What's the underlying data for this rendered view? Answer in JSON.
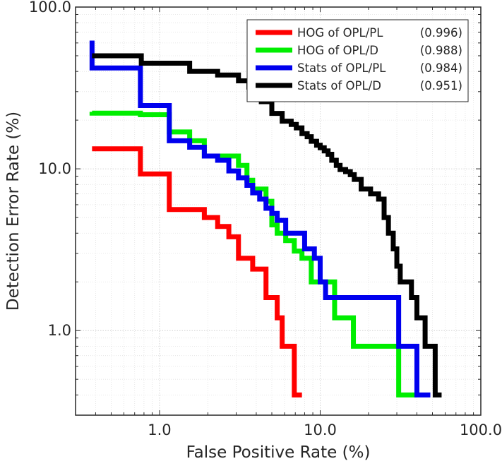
{
  "chart_data": {
    "type": "line",
    "title": "",
    "xlabel": "False Positive Rate (%)",
    "ylabel": "Detection Error Rate (%)",
    "xscale": "log",
    "yscale": "log",
    "xlim": [
      0.3,
      100
    ],
    "ylim": [
      0.3,
      100
    ],
    "xticks": [
      {
        "value": 1,
        "label": "1.0"
      },
      {
        "value": 10,
        "label": "10.0"
      },
      {
        "value": 100,
        "label": "100.0"
      }
    ],
    "yticks": [
      {
        "value": 1,
        "label": "1.0"
      },
      {
        "value": 10,
        "label": "10.0"
      },
      {
        "value": 100,
        "label": "100.0"
      }
    ],
    "grid": true,
    "legend_position": "top-right",
    "series": [
      {
        "name": "HOG of OPL/PL",
        "score": "(0.996)",
        "color": "#ff0000",
        "points": [
          [
            0.38,
            13.3
          ],
          [
            0.76,
            13.3
          ],
          [
            0.76,
            9.3
          ],
          [
            1.15,
            9.3
          ],
          [
            1.15,
            5.6
          ],
          [
            1.9,
            5.6
          ],
          [
            1.9,
            5.0
          ],
          [
            2.3,
            5.0
          ],
          [
            2.3,
            4.4
          ],
          [
            2.7,
            4.4
          ],
          [
            2.7,
            3.8
          ],
          [
            3.1,
            3.8
          ],
          [
            3.1,
            2.8
          ],
          [
            3.8,
            2.8
          ],
          [
            3.8,
            2.4
          ],
          [
            4.6,
            2.4
          ],
          [
            4.6,
            1.6
          ],
          [
            5.4,
            1.6
          ],
          [
            5.4,
            1.2
          ],
          [
            5.8,
            1.2
          ],
          [
            5.8,
            0.8
          ],
          [
            6.9,
            0.8
          ],
          [
            6.9,
            0.4
          ],
          [
            7.7,
            0.4
          ]
        ]
      },
      {
        "name": "HOG of OPL/D",
        "score": "(0.988)",
        "color": "#00ee00",
        "points": [
          [
            0.38,
            22.5
          ],
          [
            0.38,
            22.1
          ],
          [
            0.76,
            22.1
          ],
          [
            0.76,
            21.6
          ],
          [
            1.15,
            21.6
          ],
          [
            1.15,
            16.9
          ],
          [
            1.54,
            16.9
          ],
          [
            1.54,
            14.9
          ],
          [
            1.9,
            14.9
          ],
          [
            1.9,
            12.0
          ],
          [
            3.1,
            12.0
          ],
          [
            3.1,
            10.5
          ],
          [
            3.5,
            10.5
          ],
          [
            3.5,
            8.5
          ],
          [
            3.8,
            8.5
          ],
          [
            3.8,
            7.5
          ],
          [
            4.6,
            7.5
          ],
          [
            4.6,
            6.3
          ],
          [
            5.0,
            6.3
          ],
          [
            5.0,
            4.5
          ],
          [
            5.4,
            4.5
          ],
          [
            5.4,
            4.0
          ],
          [
            6.1,
            4.0
          ],
          [
            6.1,
            3.6
          ],
          [
            6.9,
            3.6
          ],
          [
            6.9,
            3.1
          ],
          [
            7.7,
            3.1
          ],
          [
            7.7,
            2.8
          ],
          [
            8.8,
            2.8
          ],
          [
            8.8,
            2.0
          ],
          [
            12.3,
            2.0
          ],
          [
            12.3,
            1.2
          ],
          [
            16.1,
            1.2
          ],
          [
            16.1,
            0.8
          ],
          [
            30.8,
            0.8
          ],
          [
            30.8,
            0.4
          ],
          [
            40.0,
            0.4
          ]
        ]
      },
      {
        "name": "Stats of OPL/PL",
        "score": "(0.984)",
        "color": "#0000ee",
        "points": [
          [
            0.38,
            62.0
          ],
          [
            0.38,
            42.0
          ],
          [
            0.76,
            42.0
          ],
          [
            0.76,
            24.6
          ],
          [
            1.15,
            24.6
          ],
          [
            1.15,
            14.9
          ],
          [
            1.54,
            14.9
          ],
          [
            1.54,
            13.6
          ],
          [
            1.9,
            13.6
          ],
          [
            1.9,
            12.0
          ],
          [
            2.3,
            12.0
          ],
          [
            2.3,
            11.3
          ],
          [
            2.7,
            11.3
          ],
          [
            2.7,
            9.7
          ],
          [
            3.1,
            9.7
          ],
          [
            3.1,
            8.8
          ],
          [
            3.5,
            8.8
          ],
          [
            3.5,
            7.9
          ],
          [
            3.8,
            7.9
          ],
          [
            3.8,
            7.1
          ],
          [
            4.2,
            7.1
          ],
          [
            4.2,
            6.5
          ],
          [
            4.6,
            6.5
          ],
          [
            4.6,
            5.7
          ],
          [
            5.0,
            5.7
          ],
          [
            5.0,
            5.3
          ],
          [
            5.4,
            5.3
          ],
          [
            5.4,
            4.8
          ],
          [
            6.1,
            4.8
          ],
          [
            6.1,
            4.0
          ],
          [
            8.0,
            4.0
          ],
          [
            8.0,
            3.2
          ],
          [
            9.2,
            3.2
          ],
          [
            9.2,
            2.8
          ],
          [
            10.0,
            2.8
          ],
          [
            10.0,
            2.0
          ],
          [
            10.8,
            2.0
          ],
          [
            10.8,
            1.6
          ],
          [
            30.8,
            1.6
          ],
          [
            30.8,
            0.8
          ],
          [
            40.0,
            0.8
          ],
          [
            40.0,
            0.4
          ],
          [
            48.5,
            0.4
          ]
        ]
      },
      {
        "name": "Stats of OPL/D",
        "score": "(0.951)",
        "color": "#000000",
        "points": [
          [
            0.38,
            50.0
          ],
          [
            0.77,
            50.0
          ],
          [
            0.77,
            45.0
          ],
          [
            1.54,
            45.0
          ],
          [
            1.54,
            40.0
          ],
          [
            2.3,
            40.0
          ],
          [
            2.3,
            38.0
          ],
          [
            3.1,
            38.0
          ],
          [
            3.1,
            35.0
          ],
          [
            3.6,
            35.0
          ],
          [
            3.6,
            32.0
          ],
          [
            3.9,
            32.0
          ],
          [
            3.9,
            29.0
          ],
          [
            4.3,
            29.0
          ],
          [
            4.3,
            26.0
          ],
          [
            5.0,
            26.0
          ],
          [
            5.0,
            22.0
          ],
          [
            5.8,
            22.0
          ],
          [
            5.8,
            19.7
          ],
          [
            6.6,
            19.7
          ],
          [
            6.6,
            18.8
          ],
          [
            7.1,
            18.8
          ],
          [
            7.1,
            17.9
          ],
          [
            7.7,
            17.9
          ],
          [
            7.7,
            16.5
          ],
          [
            8.3,
            16.5
          ],
          [
            8.3,
            15.8
          ],
          [
            8.8,
            15.8
          ],
          [
            8.8,
            14.8
          ],
          [
            9.5,
            14.8
          ],
          [
            9.5,
            14.0
          ],
          [
            10.0,
            14.0
          ],
          [
            10.0,
            13.5
          ],
          [
            10.6,
            13.5
          ],
          [
            10.6,
            12.9
          ],
          [
            11.2,
            12.9
          ],
          [
            11.2,
            12.3
          ],
          [
            11.8,
            12.3
          ],
          [
            11.8,
            11.3
          ],
          [
            12.6,
            11.3
          ],
          [
            12.6,
            10.5
          ],
          [
            13.3,
            10.5
          ],
          [
            13.3,
            9.9
          ],
          [
            14.4,
            9.9
          ],
          [
            14.4,
            9.6
          ],
          [
            15.4,
            9.6
          ],
          [
            15.4,
            9.2
          ],
          [
            16.3,
            9.2
          ],
          [
            16.3,
            8.6
          ],
          [
            18.0,
            8.6
          ],
          [
            18.0,
            7.5
          ],
          [
            20.6,
            7.5
          ],
          [
            20.6,
            7.0
          ],
          [
            23.1,
            7.0
          ],
          [
            23.1,
            6.5
          ],
          [
            25.0,
            6.5
          ],
          [
            25.0,
            5.0
          ],
          [
            26.6,
            5.0
          ],
          [
            26.6,
            4.0
          ],
          [
            28.5,
            4.0
          ],
          [
            28.5,
            3.2
          ],
          [
            30.0,
            3.2
          ],
          [
            30.0,
            2.5
          ],
          [
            31.5,
            2.5
          ],
          [
            31.5,
            2.0
          ],
          [
            37.0,
            2.0
          ],
          [
            37.0,
            1.6
          ],
          [
            40.0,
            1.6
          ],
          [
            40.0,
            1.2
          ],
          [
            45.0,
            1.2
          ],
          [
            45.0,
            0.8
          ],
          [
            52.0,
            0.8
          ],
          [
            52.0,
            0.4
          ],
          [
            57.0,
            0.4
          ]
        ]
      }
    ]
  }
}
